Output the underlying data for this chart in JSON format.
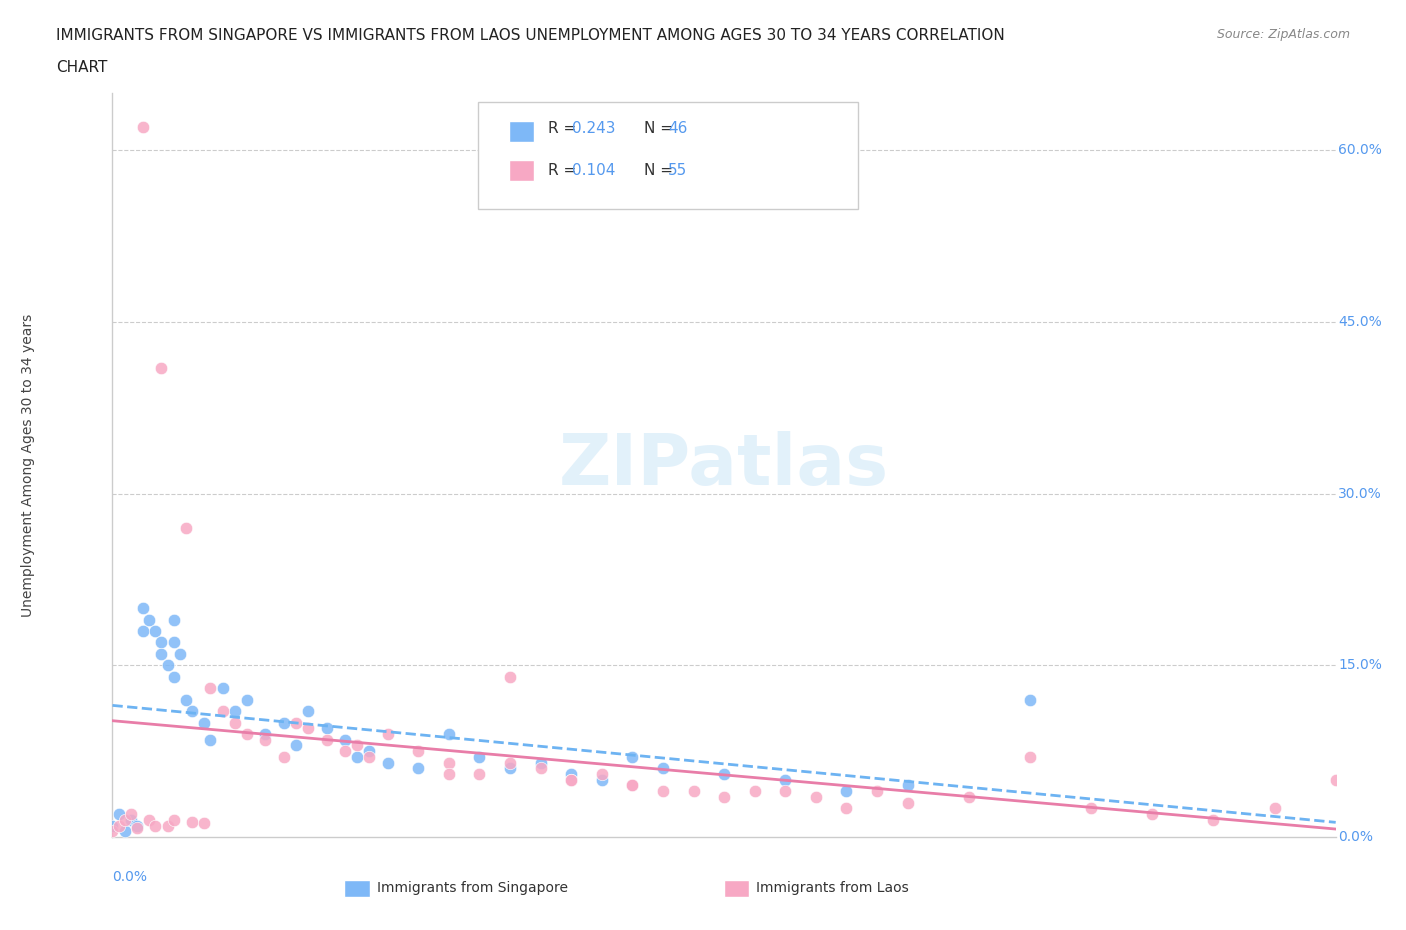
{
  "title_line1": "IMMIGRANTS FROM SINGAPORE VS IMMIGRANTS FROM LAOS UNEMPLOYMENT AMONG AGES 30 TO 34 YEARS CORRELATION",
  "title_line2": "CHART",
  "source": "Source: ZipAtlas.com",
  "ylabel": "Unemployment Among Ages 30 to 34 years",
  "singapore_color": "#7eb8f7",
  "laos_color": "#f7a8c4",
  "singapore_R": 0.243,
  "singapore_N": 46,
  "laos_R": 0.104,
  "laos_N": 55,
  "singapore_x": [
    0.0,
    0.001,
    0.002,
    0.003,
    0.004,
    0.005,
    0.005,
    0.006,
    0.007,
    0.008,
    0.008,
    0.009,
    0.01,
    0.01,
    0.01,
    0.011,
    0.012,
    0.013,
    0.015,
    0.016,
    0.018,
    0.02,
    0.022,
    0.025,
    0.028,
    0.03,
    0.032,
    0.035,
    0.038,
    0.04,
    0.042,
    0.045,
    0.05,
    0.055,
    0.06,
    0.065,
    0.07,
    0.075,
    0.08,
    0.085,
    0.09,
    0.1,
    0.11,
    0.12,
    0.13,
    0.15
  ],
  "singapore_y": [
    0.01,
    0.02,
    0.005,
    0.015,
    0.01,
    0.18,
    0.2,
    0.19,
    0.18,
    0.17,
    0.16,
    0.15,
    0.19,
    0.17,
    0.14,
    0.16,
    0.12,
    0.11,
    0.1,
    0.085,
    0.13,
    0.11,
    0.12,
    0.09,
    0.1,
    0.08,
    0.11,
    0.095,
    0.085,
    0.07,
    0.075,
    0.065,
    0.06,
    0.09,
    0.07,
    0.06,
    0.065,
    0.055,
    0.05,
    0.07,
    0.06,
    0.055,
    0.05,
    0.04,
    0.045,
    0.12
  ],
  "laos_x": [
    0.0,
    0.001,
    0.002,
    0.003,
    0.004,
    0.005,
    0.006,
    0.007,
    0.008,
    0.009,
    0.01,
    0.012,
    0.013,
    0.015,
    0.016,
    0.018,
    0.02,
    0.022,
    0.025,
    0.028,
    0.03,
    0.032,
    0.035,
    0.038,
    0.04,
    0.042,
    0.045,
    0.05,
    0.055,
    0.06,
    0.065,
    0.07,
    0.075,
    0.08,
    0.085,
    0.09,
    0.1,
    0.11,
    0.12,
    0.13,
    0.14,
    0.15,
    0.16,
    0.17,
    0.18,
    0.19,
    0.2,
    0.055,
    0.065,
    0.075,
    0.085,
    0.095,
    0.105,
    0.115,
    0.125
  ],
  "laos_y": [
    0.005,
    0.01,
    0.015,
    0.02,
    0.008,
    0.62,
    0.015,
    0.01,
    0.41,
    0.01,
    0.015,
    0.27,
    0.013,
    0.012,
    0.13,
    0.11,
    0.1,
    0.09,
    0.085,
    0.07,
    0.1,
    0.095,
    0.085,
    0.075,
    0.08,
    0.07,
    0.09,
    0.075,
    0.065,
    0.055,
    0.14,
    0.06,
    0.05,
    0.055,
    0.045,
    0.04,
    0.035,
    0.04,
    0.025,
    0.03,
    0.035,
    0.07,
    0.025,
    0.02,
    0.015,
    0.025,
    0.05,
    0.055,
    0.065,
    0.05,
    0.045,
    0.04,
    0.04,
    0.035,
    0.04
  ],
  "ytick_vals": [
    0.0,
    0.15,
    0.3,
    0.45,
    0.6
  ],
  "ytick_labels": [
    "0.0%",
    "15.0%",
    "30.0%",
    "45.0%",
    "60.0%"
  ],
  "xlim": [
    0.0,
    0.2
  ],
  "ylim": [
    0.0,
    0.65
  ]
}
